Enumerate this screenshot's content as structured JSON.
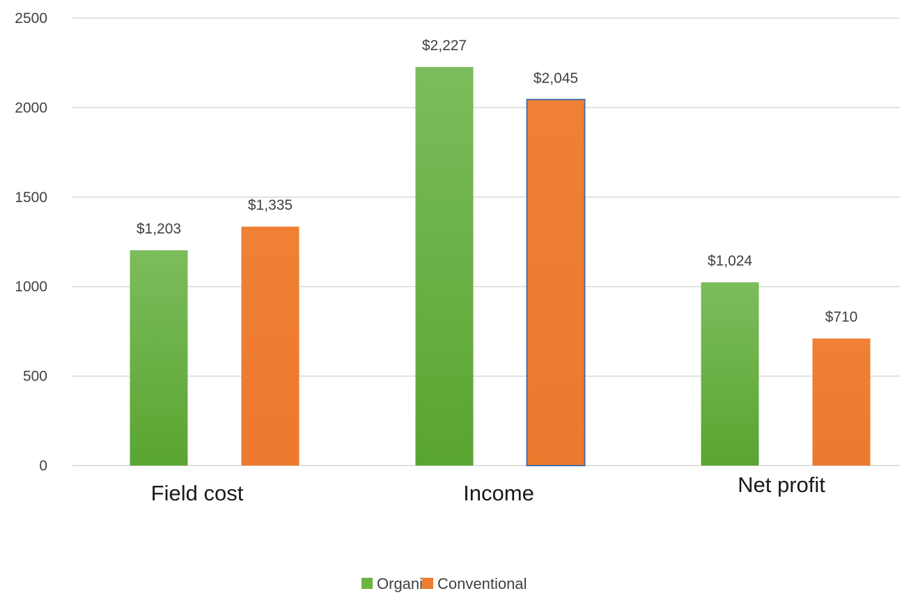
{
  "chart_data": {
    "type": "bar",
    "categories": [
      "Field cost",
      "Income",
      "Net profit"
    ],
    "series": [
      {
        "name": "Organic",
        "values": [
          1203,
          2227,
          1024
        ],
        "labels": [
          "$1,203",
          "$2,227",
          "$1,024"
        ],
        "color": "#6db33f"
      },
      {
        "name": "Conventional",
        "values": [
          1335,
          2045,
          710
        ],
        "labels": [
          "$1,335",
          "$2,045",
          "$710"
        ],
        "color": "#ed7d31"
      }
    ],
    "ylim": [
      0,
      2500
    ],
    "yticks": [
      "0",
      "500",
      "1000",
      "1500",
      "2000",
      "2500"
    ],
    "ytick_values": [
      0,
      500,
      1000,
      1500,
      2000,
      2500
    ],
    "grid": true,
    "legend_position": "bottom",
    "title": "",
    "xlabel": "",
    "ylabel": ""
  }
}
